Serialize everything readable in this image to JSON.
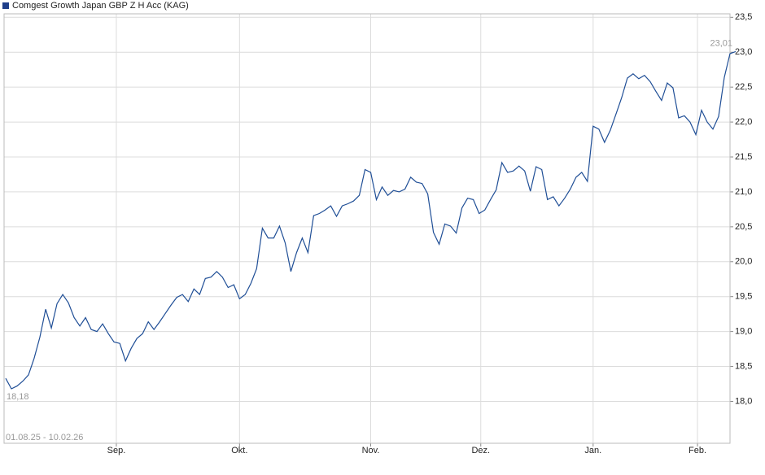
{
  "chart_data": {
    "type": "line",
    "legend": "Comgest Growth Japan GBP Z H Acc (KAG)",
    "date_range": "01.08.25 - 10.02.26",
    "color": "#1f4e96",
    "min_label": "18,18",
    "last_label": "23,01",
    "values": [
      18.33,
      18.18,
      18.22,
      18.29,
      18.38,
      18.62,
      18.92,
      19.32,
      19.05,
      19.4,
      19.53,
      19.41,
      19.2,
      19.08,
      19.2,
      19.03,
      19.0,
      19.11,
      18.97,
      18.85,
      18.83,
      18.58,
      18.76,
      18.9,
      18.97,
      19.14,
      19.03,
      19.14,
      19.26,
      19.38,
      19.49,
      19.53,
      19.43,
      19.61,
      19.53,
      19.76,
      19.78,
      19.86,
      19.78,
      19.63,
      19.67,
      19.47,
      19.53,
      19.69,
      19.9,
      20.48,
      20.34,
      20.34,
      20.51,
      20.27,
      19.86,
      20.13,
      20.34,
      20.13,
      20.66,
      20.69,
      20.74,
      20.8,
      20.65,
      20.8,
      20.83,
      20.87,
      20.95,
      21.32,
      21.28,
      20.89,
      21.07,
      20.95,
      21.02,
      21.0,
      21.04,
      21.21,
      21.14,
      21.12,
      20.97,
      20.42,
      20.25,
      20.54,
      20.51,
      20.41,
      20.77,
      20.91,
      20.89,
      20.69,
      20.74,
      20.89,
      21.03,
      21.42,
      21.28,
      21.3,
      21.37,
      21.3,
      21.01,
      21.36,
      21.32,
      20.89,
      20.93,
      20.8,
      20.91,
      21.04,
      21.21,
      21.28,
      21.15,
      21.94,
      21.9,
      21.71,
      21.88,
      22.11,
      22.35,
      22.63,
      22.69,
      22.62,
      22.67,
      22.58,
      22.44,
      22.31,
      22.56,
      22.49,
      22.06,
      22.09,
      22.0,
      21.82,
      22.17,
      22.0,
      21.9,
      22.08,
      22.64,
      22.98,
      23.01
    ],
    "xlim": [
      0,
      127
    ],
    "xticks": [
      {
        "value": 19.4,
        "label": "Sep."
      },
      {
        "value": 41,
        "label": "Okt."
      },
      {
        "value": 64,
        "label": "Nov."
      },
      {
        "value": 83.3,
        "label": "Dez."
      },
      {
        "value": 103,
        "label": "Jan."
      },
      {
        "value": 121.3,
        "label": "Feb."
      }
    ],
    "ylim": [
      17.4,
      23.55
    ],
    "yticks": [
      {
        "value": 18,
        "label": "18,0"
      },
      {
        "value": 18.5,
        "label": "18,5"
      },
      {
        "value": 19,
        "label": "19,0"
      },
      {
        "value": 19.5,
        "label": "19,5"
      },
      {
        "value": 20,
        "label": "20,0"
      },
      {
        "value": 20.5,
        "label": "20,5"
      },
      {
        "value": 21,
        "label": "21,0"
      },
      {
        "value": 21.5,
        "label": "21,5"
      },
      {
        "value": 22,
        "label": "22,0"
      },
      {
        "value": 22.5,
        "label": "22,5"
      },
      {
        "value": 23,
        "label": "23,0"
      },
      {
        "value": 23.5,
        "label": "23,5"
      }
    ],
    "grid": true
  }
}
